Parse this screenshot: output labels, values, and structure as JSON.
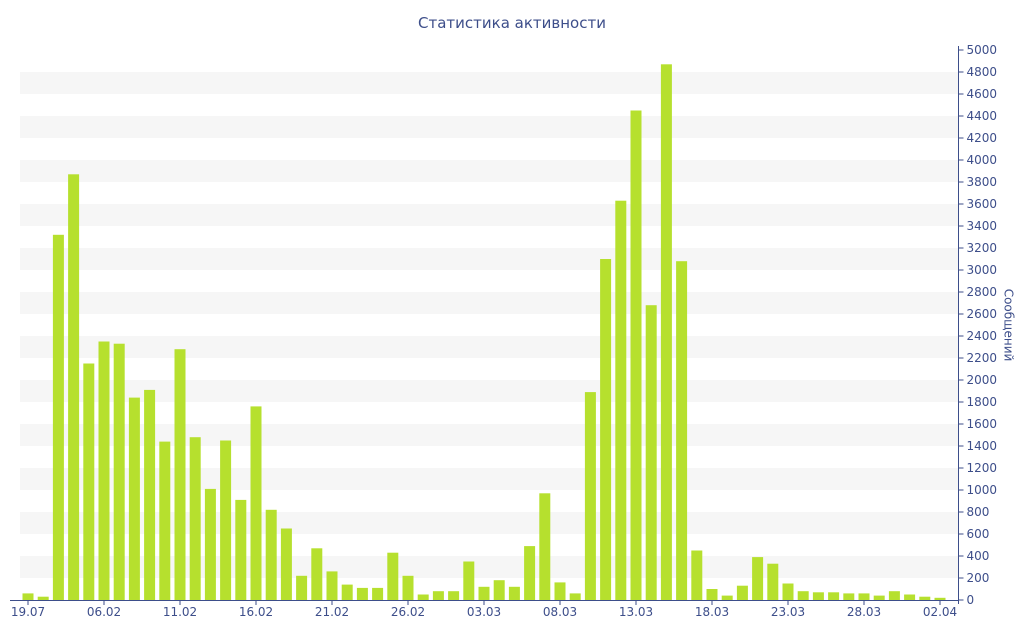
{
  "chart_data": {
    "type": "bar",
    "title": "Статистика активности",
    "xlabel": "",
    "ylabel": "Сообщений",
    "ylim": [
      0,
      5000
    ],
    "yticks": [
      0,
      200,
      400,
      600,
      800,
      1000,
      1200,
      1400,
      1600,
      1800,
      2000,
      2200,
      2400,
      2600,
      2800,
      3000,
      3200,
      3400,
      3600,
      3800,
      4000,
      4200,
      4400,
      4600,
      4800,
      5000
    ],
    "x_tick_labels": [
      {
        "index": 0,
        "label": "19.07"
      },
      {
        "index": 5,
        "label": "06.02"
      },
      {
        "index": 10,
        "label": "11.02"
      },
      {
        "index": 15,
        "label": "16.02"
      },
      {
        "index": 20,
        "label": "21.02"
      },
      {
        "index": 25,
        "label": "26.02"
      },
      {
        "index": 30,
        "label": "03.03"
      },
      {
        "index": 35,
        "label": "08.03"
      },
      {
        "index": 40,
        "label": "13.03"
      },
      {
        "index": 45,
        "label": "18.03"
      },
      {
        "index": 50,
        "label": "23.03"
      },
      {
        "index": 55,
        "label": "28.03"
      },
      {
        "index": 60,
        "label": "02.04"
      }
    ],
    "values": [
      60,
      30,
      3320,
      3870,
      2150,
      2350,
      2330,
      1840,
      1910,
      1440,
      2280,
      1480,
      1010,
      1450,
      910,
      1760,
      820,
      650,
      220,
      470,
      260,
      140,
      110,
      110,
      430,
      220,
      50,
      80,
      80,
      350,
      120,
      180,
      120,
      490,
      970,
      160,
      60,
      1890,
      3100,
      3630,
      4450,
      2680,
      4870,
      3080,
      450,
      100,
      40,
      130,
      390,
      330,
      150,
      80,
      70,
      70,
      60,
      60,
      40,
      80,
      50,
      30,
      20
    ],
    "bar_color": "#b6e02e",
    "band_color": "#f6f6f6",
    "axis_color": "#3d4e8a",
    "grid": "alternating-bands",
    "y_axis_position": "right"
  }
}
